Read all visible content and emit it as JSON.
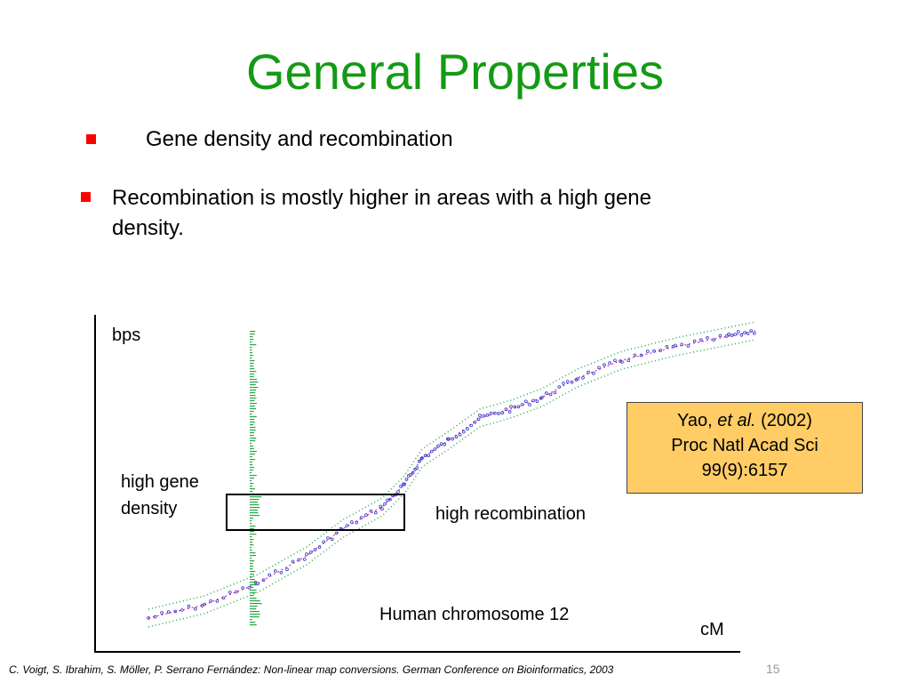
{
  "slide": {
    "title": "General Properties",
    "bullets": [
      "Gene density and recombination",
      "Recombination is mostly higher in areas with a high gene",
      "density."
    ],
    "figure": {
      "y_axis_label": "bps",
      "x_axis_label": "cM",
      "annotation_gene_density_line1": "high gene",
      "annotation_gene_density_line2": "density",
      "annotation_recombination": "high recombination",
      "caption": "Human chromosome 12",
      "citation": {
        "line1_prefix": "Yao, ",
        "line1_italic": "et al.",
        "line1_suffix": " (2002)",
        "line2": "Proc Natl Acad Sci",
        "line3": "99(9):6157"
      }
    },
    "footer": "C. Voigt, S. Ibrahim, S. Möller, P. Serrano Fernández: Non-linear map conversions. German Conference on Bioinformatics, 2003",
    "page_number": "15",
    "colors": {
      "title": "#149a14",
      "bullet": "#ff0000",
      "citation_box": "#ffcc66",
      "points": "#3333cc",
      "confidence_band": "#22aa44",
      "fit_line": "#cc3399"
    }
  }
}
